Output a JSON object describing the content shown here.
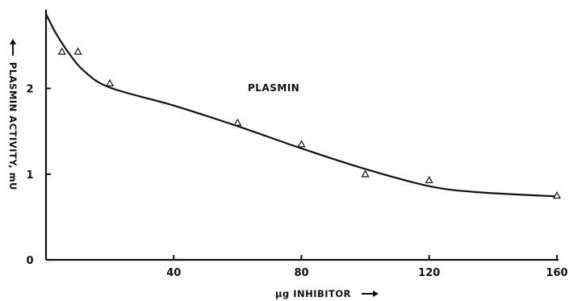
{
  "chart_data": {
    "type": "scatter",
    "title": "",
    "xlabel": "µg INHIBITOR",
    "ylabel": "PLASMIN ACTIVITY, mU",
    "xlim": [
      0,
      160
    ],
    "ylim": [
      0,
      2.9
    ],
    "xticks": [
      40,
      80,
      120,
      160
    ],
    "xtick_labels": [
      "40",
      "80",
      "120",
      "160"
    ],
    "yticks": [
      0,
      1,
      2
    ],
    "ytick_labels": [
      "0",
      "1",
      "2"
    ],
    "annotation": "PLASMIN",
    "marker": "open-triangle",
    "points": [
      {
        "x": 5,
        "y": 2.43
      },
      {
        "x": 10,
        "y": 2.43
      },
      {
        "x": 20,
        "y": 2.06
      },
      {
        "x": 60,
        "y": 1.6
      },
      {
        "x": 80,
        "y": 1.35
      },
      {
        "x": 100,
        "y": 1.0
      },
      {
        "x": 120,
        "y": 0.93
      },
      {
        "x": 160,
        "y": 0.75
      }
    ],
    "fitted_curve": [
      {
        "x": 0,
        "y": 2.87
      },
      {
        "x": 3,
        "y": 2.65
      },
      {
        "x": 7,
        "y": 2.42
      },
      {
        "x": 12,
        "y": 2.2
      },
      {
        "x": 20,
        "y": 2.01
      },
      {
        "x": 40,
        "y": 1.8
      },
      {
        "x": 60,
        "y": 1.56
      },
      {
        "x": 80,
        "y": 1.3
      },
      {
        "x": 100,
        "y": 1.06
      },
      {
        "x": 120,
        "y": 0.86
      },
      {
        "x": 135,
        "y": 0.79
      },
      {
        "x": 160,
        "y": 0.74
      }
    ],
    "grid": false,
    "colors": {
      "ink": "#111111",
      "background": "#ffffff"
    }
  }
}
